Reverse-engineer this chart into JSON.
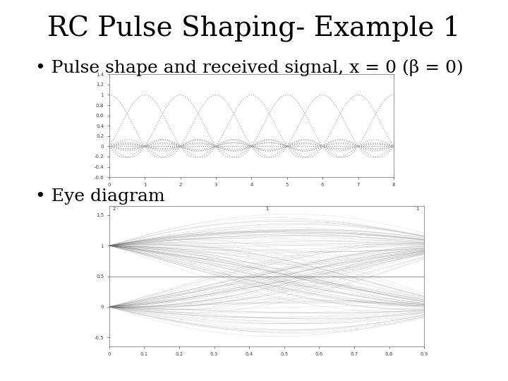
{
  "title": "RC Pulse Shaping- Example 1",
  "bullet1": "• Pulse shape and received signal, x = 0 (β = 0)",
  "bullet2": "• Eye diagram",
  "background_color": "#ffffff",
  "title_fontsize": 28,
  "bullet_fontsize": 18,
  "plot1_xlim": [
    0,
    8
  ],
  "plot1_ylim": [
    -0.6,
    1.4
  ],
  "plot1_yticks": [
    -0.6,
    -0.4,
    -0.2,
    0.0,
    0.2,
    0.4,
    0.6,
    0.8,
    1.0,
    1.2,
    1.4
  ],
  "plot1_yticklabels": [
    "-0.6",
    "-0.4",
    "-0.2",
    "0",
    "0.2",
    "0.4",
    "0.6",
    "0.8",
    "1",
    "1.2",
    "1.4"
  ],
  "plot1_xticks": [
    0,
    1,
    2,
    3,
    4,
    5,
    6,
    7,
    8
  ],
  "plot2_xlim": [
    0,
    0.9
  ],
  "plot2_ylim": [
    -0.65,
    1.65
  ],
  "plot2_yticks": [
    -0.5,
    0.0,
    0.5,
    1.0,
    1.5
  ],
  "plot2_yticklabels": [
    "-0.5",
    "0",
    "0.5",
    "1",
    "1.5"
  ],
  "plot2_xticks": [
    0.0,
    0.1,
    0.2,
    0.3,
    0.4,
    0.5,
    0.6,
    0.7,
    0.8,
    0.9
  ],
  "plot2_xticklabels": [
    "0",
    "0.1",
    "0.2",
    "0.3",
    "0.4",
    "0.5",
    "0.6",
    "0.7",
    "0.8",
    "0.9"
  ],
  "line_color": "#888888",
  "beta": 0,
  "n_symbols": 150,
  "sps": 50
}
